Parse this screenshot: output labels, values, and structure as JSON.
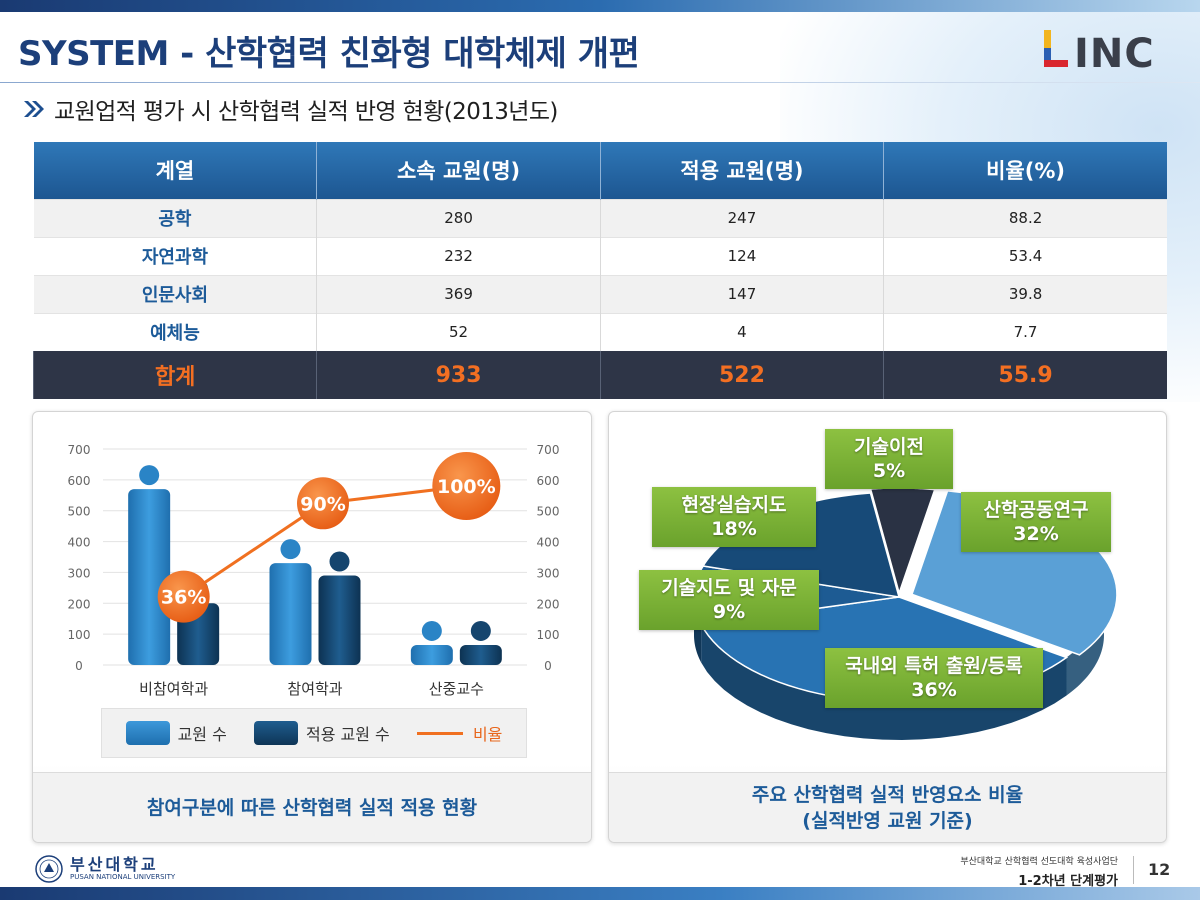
{
  "header": {
    "title": "SYSTEM - 산학협력 친화형 대학체제 개편",
    "logo_text": "LINC",
    "subtitle": "교원업적 평가 시 산학협력 실적 반영 현황(2013년도)"
  },
  "table": {
    "headers": [
      "계열",
      "소속 교원(명)",
      "적용 교원(명)",
      "비율(%)"
    ],
    "rows": [
      [
        "공학",
        "280",
        "247",
        "88.2"
      ],
      [
        "자연과학",
        "232",
        "124",
        "53.4"
      ],
      [
        "인문사회",
        "369",
        "147",
        "39.8"
      ],
      [
        "예체능",
        "52",
        "4",
        "7.7"
      ]
    ],
    "total": [
      "합계",
      "933",
      "522",
      "55.9"
    ]
  },
  "chart_data": [
    {
      "type": "bar",
      "categories": [
        "비참여학과",
        "참여학과",
        "산중교수"
      ],
      "series": [
        {
          "name": "교원 수",
          "values": [
            570,
            330,
            65
          ],
          "color": "#2f86c9"
        },
        {
          "name": "적용 교원 수",
          "values": [
            200,
            290,
            65
          ],
          "color": "#15456e"
        }
      ],
      "line_series": {
        "name": "비율",
        "values": [
          36,
          90,
          100
        ],
        "labels": [
          "36%",
          "90%",
          "100%"
        ],
        "color": "#f07020"
      },
      "y_ticks": [
        "0",
        "100",
        "200",
        "300",
        "400",
        "500",
        "600",
        "700"
      ],
      "ylim": [
        0,
        700
      ],
      "caption": "참여구분에 따른 산학협력 실적 적용 현황"
    },
    {
      "type": "pie",
      "slices": [
        {
          "label": "산학공동연구",
          "value": 32,
          "text": "32%",
          "color": "#5aa0d6"
        },
        {
          "label": "국내외 특허 출원/등록",
          "value": 36,
          "text": "36%",
          "color": "#2873b3"
        },
        {
          "label": "기술지도 및 자문",
          "value": 9,
          "text": "9%",
          "color": "#1d5b93"
        },
        {
          "label": "현장실습지도",
          "value": 18,
          "text": "18%",
          "color": "#174a78"
        },
        {
          "label": "기술이전",
          "value": 5,
          "text": "5%",
          "color": "#2a3244"
        }
      ],
      "caption_line1": "주요 산학협력 실적 반영요소 비율",
      "caption_line2": "(실적반영 교원 기준)"
    }
  ],
  "footer": {
    "univ_kr": "부산대학교",
    "univ_en": "PUSAN NATIONAL UNIVERSITY",
    "org_line1": "부산대학교 산학협력 선도대학 육성사업단",
    "org_line2": "1-2차년 단계평가",
    "page": "12"
  }
}
